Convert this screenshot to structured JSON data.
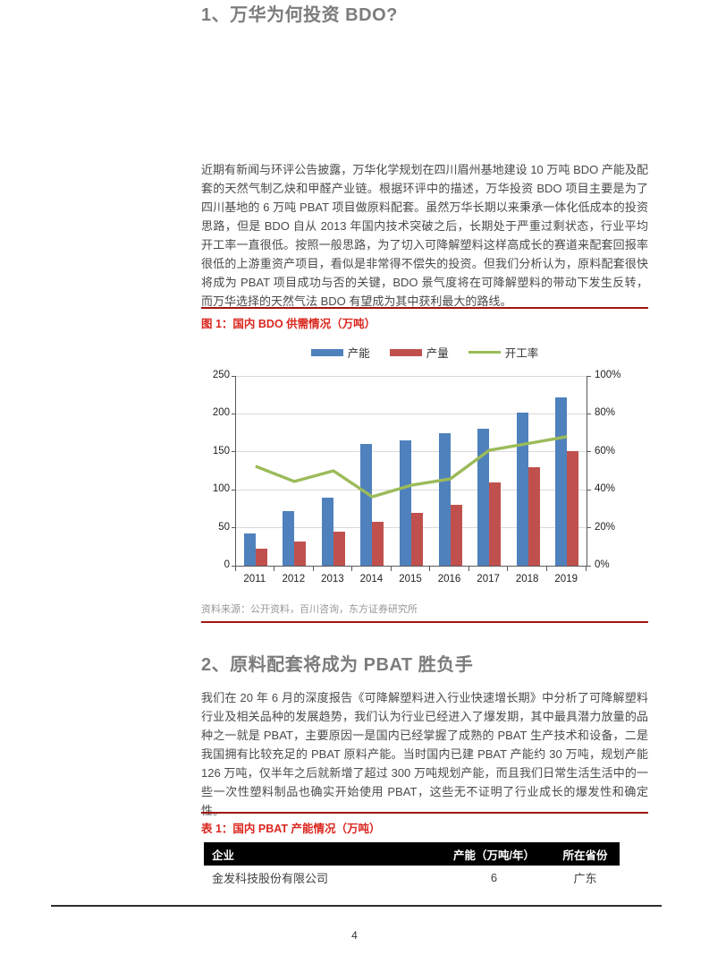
{
  "sections": {
    "s1": {
      "heading": "1、万华为何投资 BDO?",
      "paragraph": "近期有新闻与环评公告披露，万华化学规划在四川眉州基地建设 10 万吨 BDO 产能及配套的天然气制乙炔和甲醛产业链。根据环评中的描述，万华投资 BDO 项目主要是为了四川基地的 6 万吨 PBAT 项目做原料配套。虽然万华长期以来秉承一体化低成本的投资思路，但是 BDO 自从 2013 年国内技术突破之后，长期处于严重过剩状态，行业平均开工率一直很低。按照一般思路，为了切入可降解塑料这样高成长的赛道来配套回报率很低的上游重资产项目，看似是非常得不偿失的投资。但我们分析认为，原料配套很快将成为 PBAT 项目成功与否的关键，BDO 景气度将在可降解塑料的带动下发生反转，而万华选择的天然气法 BDO 有望成为其中获利最大的路线。"
    },
    "s2": {
      "heading": "2、原料配套将成为 PBAT 胜负手",
      "paragraph": "我们在 20 年 6 月的深度报告《可降解塑料进入行业快速增长期》中分析了可降解塑料行业及相关品种的发展趋势，我们认为行业已经进入了爆发期，其中最具潜力放量的品种之一就是 PBAT，主要原因一是国内已经掌握了成熟的 PBAT 生产技术和设备，二是我国拥有比较充足的 PBAT 原料产能。当时国内已建 PBAT 产能约 30 万吨，规划产能 126 万吨，仅半年之后就新增了超过 300 万吨规划产能，而且我们日常生活生活中的一些一次性塑料制品也确实开始使用 PBAT，这些无不证明了行业成长的爆发性和确定性。"
    }
  },
  "figure1": {
    "caption": "图 1：国内 BDO 供需情况（万吨）",
    "source": "资料来源：公开资料，百川咨询，东方证券研究所"
  },
  "chart_data": {
    "type": "combo",
    "title": "国内 BDO 供需情况（万吨）",
    "categories": [
      "2011",
      "2012",
      "2013",
      "2014",
      "2015",
      "2016",
      "2017",
      "2018",
      "2019"
    ],
    "series": [
      {
        "id": "capacity",
        "name": "产能",
        "type": "bar",
        "axis": "left",
        "color": "#4F81BD",
        "values": [
          42,
          72,
          90,
          160,
          165,
          175,
          181,
          202,
          222
        ]
      },
      {
        "id": "production",
        "name": "产量",
        "type": "bar",
        "axis": "left",
        "color": "#C0504D",
        "values": [
          22,
          32,
          45,
          58,
          70,
          80,
          110,
          130,
          151
        ]
      },
      {
        "id": "operating-rate",
        "name": "开工率",
        "type": "line",
        "axis": "right",
        "color": "#9BBB59",
        "unit": "%",
        "values": [
          52.4,
          44.4,
          50.0,
          36.3,
          42.4,
          45.7,
          60.8,
          64.4,
          68.0
        ]
      }
    ],
    "left_axis": {
      "min": 0,
      "max": 250,
      "step": 50,
      "ticks": [
        "0",
        "50",
        "100",
        "150",
        "200",
        "250"
      ]
    },
    "right_axis": {
      "min": 0,
      "max": 100,
      "step": 20,
      "ticks": [
        "0%",
        "20%",
        "40%",
        "60%",
        "80%",
        "100%"
      ]
    },
    "grid": true,
    "legend_position": "top"
  },
  "table1": {
    "caption": "表 1：国内 PBAT 产能情况（万吨）",
    "headers": [
      "企业",
      "产能（万吨/年）",
      "所在省份"
    ],
    "rows": [
      [
        "金发科技股份有限公司",
        "6",
        "广东"
      ]
    ]
  },
  "footer": {
    "page_number": "4"
  },
  "colors": {
    "caption_red": "#db261f",
    "rule_red": "#a01512",
    "heading_gray": "#7c7c7c",
    "bar_blue": "#4F81BD",
    "bar_red": "#C0504D",
    "line_green": "#9BBB59",
    "table_header_bg": "#000000"
  }
}
